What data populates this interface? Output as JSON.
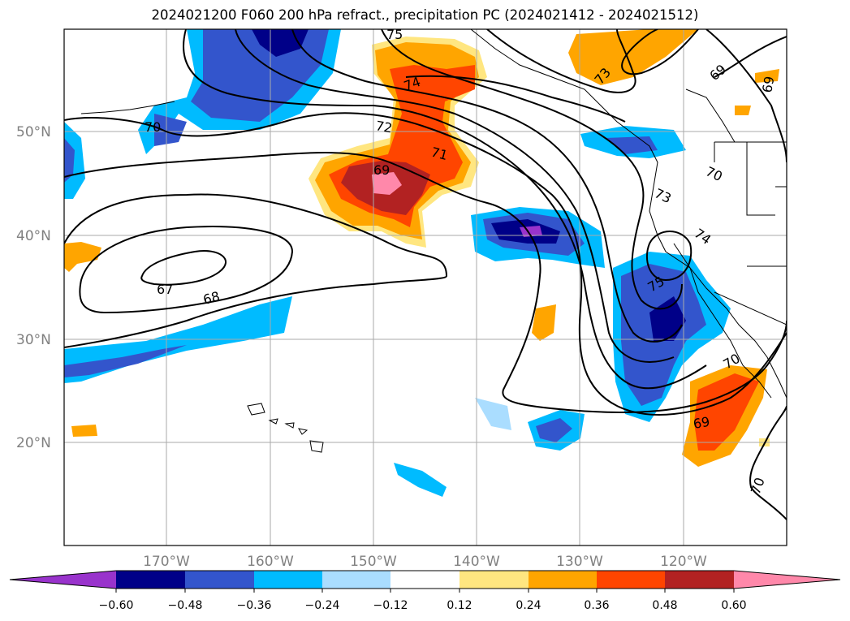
{
  "title": "2024021200 F060 200 hPa refract., precipitation PC (2024021412 - 2024021512)",
  "lat_labels": [
    "50°N",
    "40°N",
    "30°N",
    "20°N"
  ],
  "lon_labels": [
    "170°W",
    "160°W",
    "150°W",
    "140°W",
    "130°W",
    "120°W"
  ],
  "contour_labels": [
    {
      "text": "75"
    },
    {
      "text": "74"
    },
    {
      "text": "72"
    },
    {
      "text": "71"
    },
    {
      "text": "69"
    },
    {
      "text": "70"
    },
    {
      "text": "67"
    },
    {
      "text": "68"
    },
    {
      "text": "73"
    },
    {
      "text": "69"
    },
    {
      "text": "69"
    },
    {
      "text": "70"
    },
    {
      "text": "73"
    },
    {
      "text": "74"
    },
    {
      "text": "75"
    },
    {
      "text": "70"
    },
    {
      "text": "69"
    },
    {
      "text": "70"
    }
  ],
  "colorbar": {
    "labels": [
      "−0.60",
      "−0.48",
      "−0.36",
      "−0.24",
      "−0.12",
      "0.12",
      "0.24",
      "0.36",
      "0.48",
      "0.60"
    ],
    "colors": {
      "neg_extend": "#9933cc",
      "neg_060": "#000088",
      "neg_048": "#3355cc",
      "neg_036": "#00bbff",
      "neg_024": "#aaddff",
      "neutral": "#ffffff",
      "pos_012": "#ffe680",
      "pos_024": "#ffa500",
      "pos_036": "#ff4500",
      "pos_048": "#b22222",
      "pos_extend": "#ff88aa"
    }
  }
}
